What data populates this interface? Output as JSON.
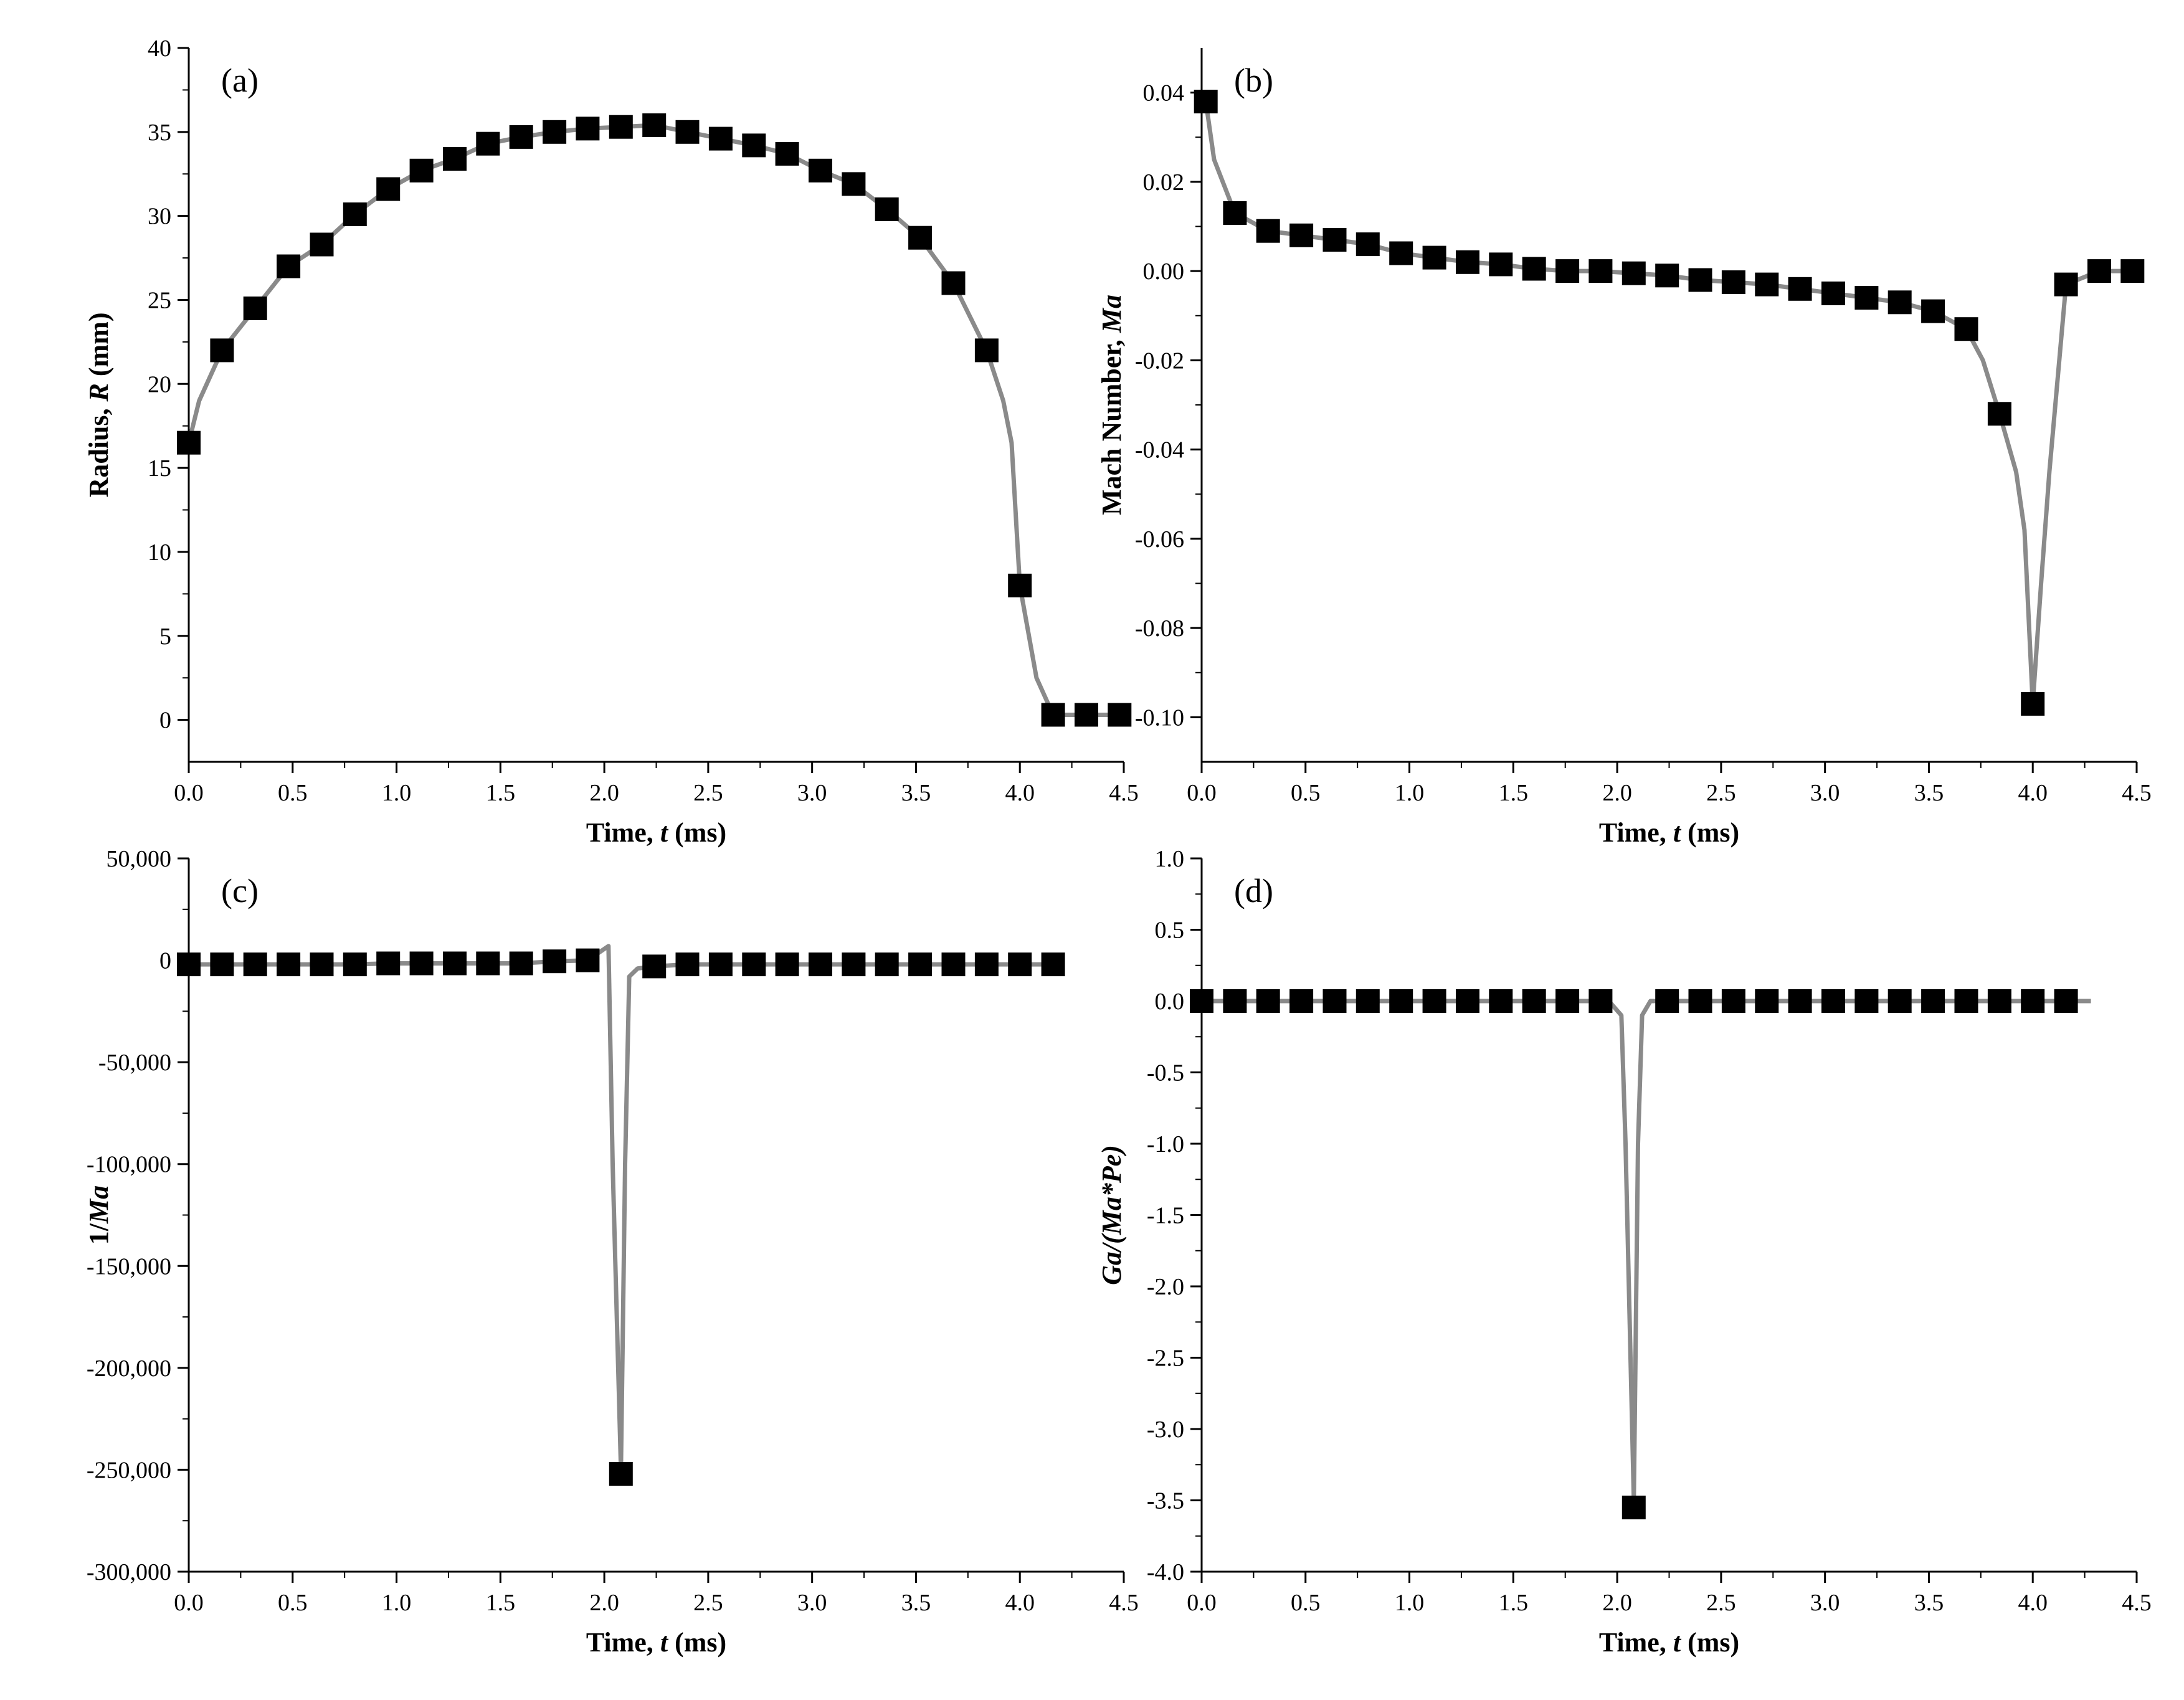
{
  "colors": {
    "line": "#8a8a8a",
    "marker": "#000000",
    "axis": "#000000"
  },
  "chart_data": [
    {
      "id": "a",
      "type": "line",
      "panel_label": "(a)",
      "xlabel_parts": [
        "Time, ",
        "t",
        " (ms)"
      ],
      "ylabel_parts": [
        "Radius, ",
        "R",
        " (mm)"
      ],
      "xlim": [
        0,
        4.5
      ],
      "ylim": [
        -2.5,
        40
      ],
      "xticks": [
        0,
        0.5,
        1,
        1.5,
        2,
        2.5,
        3,
        3.5,
        4,
        4.5
      ],
      "xtick_labels": [
        "0.0",
        "0.5",
        "1.0",
        "1.5",
        "2.0",
        "2.5",
        "3.0",
        "3.5",
        "4.0",
        "4.5"
      ],
      "yticks": [
        0,
        5,
        10,
        15,
        20,
        25,
        30,
        35,
        40
      ],
      "ytick_labels": [
        "0",
        "5",
        "10",
        "15",
        "20",
        "25",
        "30",
        "35",
        "40"
      ],
      "line": {
        "x": [
          0,
          0.05,
          0.16,
          0.32,
          0.48,
          0.64,
          0.8,
          0.96,
          1.12,
          1.28,
          1.44,
          1.6,
          1.76,
          1.92,
          2.08,
          2.24,
          2.4,
          2.56,
          2.72,
          2.88,
          3.04,
          3.2,
          3.36,
          3.52,
          3.68,
          3.76,
          3.84,
          3.92,
          3.96,
          4.0,
          4.08,
          4.16,
          4.32,
          4.48
        ],
        "y": [
          16.5,
          19.0,
          22.0,
          24.5,
          27.0,
          28.3,
          30.1,
          31.6,
          32.7,
          33.4,
          34.3,
          34.7,
          35.0,
          35.2,
          35.3,
          35.4,
          35.0,
          34.6,
          34.2,
          33.7,
          32.7,
          31.9,
          30.4,
          28.7,
          26.0,
          24.0,
          22.0,
          19.0,
          16.5,
          8.0,
          2.5,
          0.3,
          0.3,
          0.3
        ]
      },
      "markers": {
        "x": [
          0,
          0.16,
          0.32,
          0.48,
          0.64,
          0.8,
          0.96,
          1.12,
          1.28,
          1.44,
          1.6,
          1.76,
          1.92,
          2.08,
          2.24,
          2.4,
          2.56,
          2.72,
          2.88,
          3.04,
          3.2,
          3.36,
          3.52,
          3.68,
          3.84,
          4.0,
          4.16,
          4.32,
          4.48
        ],
        "y": [
          16.5,
          22.0,
          24.5,
          27.0,
          28.3,
          30.1,
          31.6,
          32.7,
          33.4,
          34.3,
          34.7,
          35.0,
          35.2,
          35.3,
          35.4,
          35.0,
          34.6,
          34.2,
          33.7,
          32.7,
          31.9,
          30.4,
          28.7,
          26.0,
          22.0,
          8.0,
          0.3,
          0.3,
          0.3
        ]
      }
    },
    {
      "id": "b",
      "type": "line",
      "panel_label": "(b)",
      "xlabel_parts": [
        "Time, ",
        "t",
        " (ms)"
      ],
      "ylabel_parts": [
        "Mach Number, ",
        "Ma",
        ""
      ],
      "xlim": [
        0,
        4.5
      ],
      "ylim": [
        -0.11,
        0.05
      ],
      "xticks": [
        0,
        0.5,
        1,
        1.5,
        2,
        2.5,
        3,
        3.5,
        4,
        4.5
      ],
      "xtick_labels": [
        "0.0",
        "0.5",
        "1.0",
        "1.5",
        "2.0",
        "2.5",
        "3.0",
        "3.5",
        "4.0",
        "4.5"
      ],
      "yticks": [
        -0.1,
        -0.08,
        -0.06,
        -0.04,
        -0.02,
        0,
        0.02,
        0.04
      ],
      "ytick_labels": [
        "-0.10",
        "-0.08",
        "-0.06",
        "-0.04",
        "-0.02",
        "0.00",
        "0.02",
        "0.04"
      ],
      "line": {
        "x": [
          0.02,
          0.06,
          0.16,
          0.32,
          0.48,
          0.64,
          0.8,
          0.96,
          1.12,
          1.28,
          1.44,
          1.6,
          1.76,
          1.92,
          2.08,
          2.24,
          2.4,
          2.56,
          2.72,
          2.88,
          3.04,
          3.2,
          3.36,
          3.52,
          3.68,
          3.76,
          3.84,
          3.92,
          3.96,
          4.0,
          4.04,
          4.08,
          4.16,
          4.32,
          4.48
        ],
        "y": [
          0.038,
          0.025,
          0.013,
          0.009,
          0.008,
          0.007,
          0.006,
          0.004,
          0.003,
          0.002,
          0.0015,
          0.0005,
          0.0,
          0.0,
          -0.0005,
          -0.001,
          -0.002,
          -0.0025,
          -0.003,
          -0.004,
          -0.005,
          -0.006,
          -0.007,
          -0.009,
          -0.013,
          -0.02,
          -0.032,
          -0.045,
          -0.058,
          -0.097,
          -0.07,
          -0.045,
          -0.003,
          0.0,
          0.0
        ]
      },
      "markers": {
        "x": [
          0.02,
          0.16,
          0.32,
          0.48,
          0.64,
          0.8,
          0.96,
          1.12,
          1.28,
          1.44,
          1.6,
          1.76,
          1.92,
          2.08,
          2.24,
          2.4,
          2.56,
          2.72,
          2.88,
          3.04,
          3.2,
          3.36,
          3.52,
          3.68,
          3.84,
          4.0,
          4.16,
          4.32,
          4.48
        ],
        "y": [
          0.038,
          0.013,
          0.009,
          0.008,
          0.007,
          0.006,
          0.004,
          0.003,
          0.002,
          0.0015,
          0.0005,
          0.0,
          0.0,
          -0.0005,
          -0.001,
          -0.002,
          -0.0025,
          -0.003,
          -0.004,
          -0.005,
          -0.006,
          -0.007,
          -0.009,
          -0.013,
          -0.032,
          -0.097,
          -0.003,
          0.0,
          0.0
        ]
      }
    },
    {
      "id": "c",
      "type": "line",
      "panel_label": "(c)",
      "xlabel_parts": [
        "Time, ",
        "t",
        " (ms)"
      ],
      "ylabel_parts": [
        "1/",
        "Ma",
        ""
      ],
      "xlim": [
        0,
        4.5
      ],
      "ylim": [
        -300000,
        50000
      ],
      "xticks": [
        0,
        0.5,
        1,
        1.5,
        2,
        2.5,
        3,
        3.5,
        4,
        4.5
      ],
      "xtick_labels": [
        "0.0",
        "0.5",
        "1.0",
        "1.5",
        "2.0",
        "2.5",
        "3.0",
        "3.5",
        "4.0",
        "4.5"
      ],
      "yticks": [
        -300000,
        -250000,
        -200000,
        -150000,
        -100000,
        -50000,
        0,
        50000
      ],
      "ytick_labels": [
        "-300,000",
        "-250,000",
        "-200,000",
        "-150,000",
        "-100,000",
        "-50,000",
        "0",
        "50,000"
      ],
      "line": {
        "x": [
          0,
          0.16,
          0.32,
          0.48,
          0.64,
          0.8,
          0.96,
          1.12,
          1.28,
          1.44,
          1.6,
          1.76,
          1.92,
          2.02,
          2.04,
          2.08,
          2.1,
          2.12,
          2.16,
          2.24,
          2.4,
          2.56,
          2.72,
          2.88,
          3.04,
          3.2,
          3.36,
          3.52,
          3.68,
          3.84,
          4.0,
          4.16
        ],
        "y": [
          -2000,
          -2000,
          -2000,
          -2000,
          -2000,
          -2000,
          -1500,
          -1500,
          -1500,
          -1500,
          -1500,
          -500,
          0,
          7000,
          -100000,
          -250000,
          -100000,
          -8000,
          -4000,
          -3000,
          -2000,
          -2000,
          -2000,
          -2000,
          -2000,
          -2000,
          -2000,
          -2000,
          -2000,
          -2000,
          -2000,
          -2000
        ]
      },
      "markers": {
        "x": [
          0,
          0.16,
          0.32,
          0.48,
          0.64,
          0.8,
          0.96,
          1.12,
          1.28,
          1.44,
          1.6,
          1.76,
          1.92,
          2.08,
          2.24,
          2.4,
          2.56,
          2.72,
          2.88,
          3.04,
          3.2,
          3.36,
          3.52,
          3.68,
          3.84,
          4.0,
          4.16
        ],
        "y": [
          -2000,
          -2000,
          -2000,
          -2000,
          -2000,
          -2000,
          -1500,
          -1500,
          -1500,
          -1500,
          -1500,
          -500,
          0,
          -252000,
          -3000,
          -2000,
          -2000,
          -2000,
          -2000,
          -2000,
          -2000,
          -2000,
          -2000,
          -2000,
          -2000,
          -2000,
          -2000
        ]
      }
    },
    {
      "id": "d",
      "type": "line",
      "panel_label": "(d)",
      "xlabel_parts": [
        "Time, ",
        "t",
        " (ms)"
      ],
      "ylabel_parts": [
        "",
        "Ga/(Ma*Pe)",
        ""
      ],
      "xlim": [
        0,
        4.5
      ],
      "ylim": [
        -4.0,
        1.0
      ],
      "xticks": [
        0,
        0.5,
        1,
        1.5,
        2,
        2.5,
        3,
        3.5,
        4,
        4.5
      ],
      "xtick_labels": [
        "0.0",
        "0.5",
        "1.0",
        "1.5",
        "2.0",
        "2.5",
        "3.0",
        "3.5",
        "4.0",
        "4.5"
      ],
      "yticks": [
        -4,
        -3.5,
        -3,
        -2.5,
        -2,
        -1.5,
        -1,
        -0.5,
        0,
        0.5,
        1
      ],
      "ytick_labels": [
        "-4.0",
        "-3.5",
        "-3.0",
        "-2.5",
        "-2.0",
        "-1.5",
        "-1.0",
        "-0.5",
        "0.0",
        "0.5",
        "1.0"
      ],
      "line": {
        "x": [
          0,
          0.16,
          0.32,
          0.48,
          0.64,
          0.8,
          0.96,
          1.12,
          1.28,
          1.44,
          1.6,
          1.76,
          1.92,
          1.96,
          2.02,
          2.04,
          2.08,
          2.1,
          2.12,
          2.16,
          2.24,
          2.4,
          2.56,
          2.72,
          2.88,
          3.04,
          3.2,
          3.36,
          3.52,
          3.68,
          3.84,
          4.0,
          4.16,
          4.28
        ],
        "y": [
          0,
          0,
          0,
          0,
          0,
          0,
          0,
          0,
          0,
          0,
          0,
          0,
          0,
          0,
          -0.1,
          -1.0,
          -3.5,
          -1.0,
          -0.1,
          0,
          0,
          0,
          0,
          0,
          0,
          0,
          0,
          0,
          0,
          0,
          0,
          0,
          0,
          0
        ]
      },
      "markers": {
        "x": [
          0,
          0.16,
          0.32,
          0.48,
          0.64,
          0.8,
          0.96,
          1.12,
          1.28,
          1.44,
          1.6,
          1.76,
          1.92,
          2.08,
          2.24,
          2.4,
          2.56,
          2.72,
          2.88,
          3.04,
          3.2,
          3.36,
          3.52,
          3.68,
          3.84,
          4.0,
          4.16
        ],
        "y": [
          0,
          0,
          0,
          0,
          0,
          0,
          0,
          0,
          0,
          0,
          0,
          0,
          0,
          -3.55,
          0,
          0,
          0,
          0,
          0,
          0,
          0,
          0,
          0,
          0,
          0,
          0,
          0
        ]
      }
    }
  ]
}
